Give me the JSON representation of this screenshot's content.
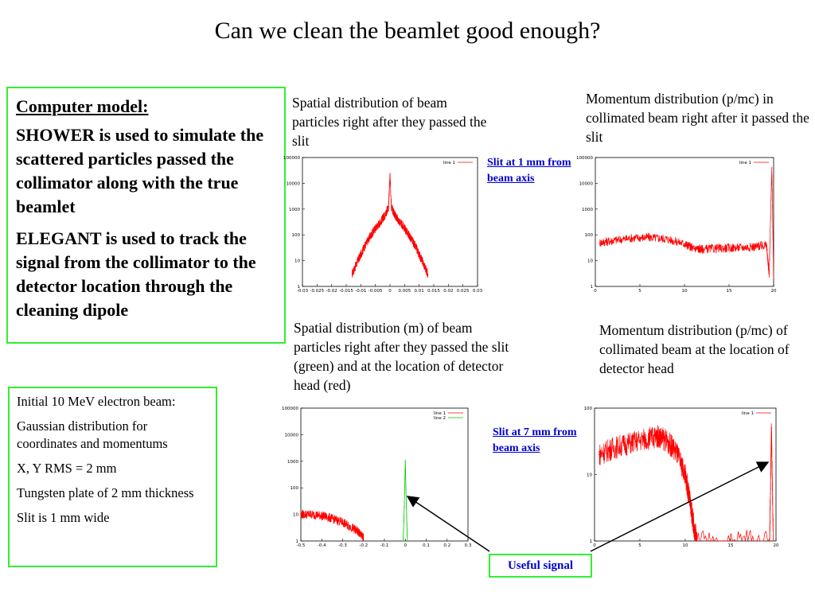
{
  "title": "Can we clean the beamlet good enough?",
  "model_box": {
    "heading": "Computer model:",
    "p1": "SHOWER is used to simulate the scattered particles passed the collimator along with the true beamlet",
    "p2": "ELEGANT is used to track the signal from the collimator to the detector location through the cleaning dipole"
  },
  "beam_box": {
    "p1": "Initial 10 MeV electron beam:",
    "p2": "Gaussian distribution for coordinates and momentums",
    "p3": "X, Y RMS = 2 mm",
    "p4": "Tungsten plate of 2 mm thickness",
    "p5": "Slit is 1 mm wide"
  },
  "captions": {
    "c1": "Spatial distribution of beam particles right after they passed the slit",
    "c2": "Momentum distribution (p/mc) in collimated beam right after it passed the slit",
    "c3": "Spatial distribution (m) of beam particles right after they passed the slit (green) and at the location of detector head (red)",
    "c4": "Momentum distribution (p/mc) of collimated beam at the location of detector head"
  },
  "links": {
    "slit1": "Slit at 1 mm from beam axis",
    "slit7": "Slit at 7 mm from beam axis"
  },
  "useful_signal": "Useful signal",
  "colors": {
    "box_border": "#33ee33",
    "link": "#0000cc",
    "series_red": "#ff0000",
    "series_green": "#00cc00"
  },
  "chart_data": [
    {
      "type": "line",
      "xlim": [
        -0.03,
        0.03
      ],
      "ylim": [
        1,
        100000
      ],
      "yscale": "log",
      "grid": false,
      "legend": "top-right",
      "xticks": [
        "-0.03",
        "-0.025",
        "-0.02",
        "-0.015",
        "-0.01",
        "-0.005",
        "0",
        "0.005",
        "0.01",
        "0.015",
        "0.02",
        "0.025",
        "0.03"
      ],
      "yticks": [
        "1",
        "10",
        "100",
        "1000",
        "10000",
        "100000"
      ],
      "series": [
        {
          "name": "line 1",
          "color": "#ff0000",
          "x": [
            -0.013,
            -0.011,
            -0.009,
            -0.007,
            -0.005,
            -0.003,
            -0.0015,
            -0.0005,
            0,
            0.0005,
            0.0015,
            0.003,
            0.005,
            0.007,
            0.009,
            0.011,
            0.013
          ],
          "y": [
            3,
            10,
            30,
            80,
            180,
            350,
            650,
            1200,
            20000,
            1200,
            650,
            350,
            180,
            80,
            30,
            10,
            3
          ]
        }
      ]
    },
    {
      "type": "line",
      "xlim": [
        0,
        20
      ],
      "ylim": [
        1,
        100000
      ],
      "yscale": "log",
      "grid": false,
      "legend": "top-right",
      "xticks": [
        "0",
        "5",
        "10",
        "15",
        "20"
      ],
      "yticks": [
        "1",
        "10",
        "100",
        "1000",
        "10000",
        "100000"
      ],
      "series": [
        {
          "name": "line 1",
          "color": "#ff0000",
          "x": [
            0.5,
            2,
            4,
            6,
            8,
            10,
            11,
            12,
            14,
            16,
            18,
            19.2,
            19.5,
            19.8,
            20
          ],
          "y": [
            50,
            60,
            75,
            80,
            70,
            45,
            30,
            28,
            30,
            32,
            35,
            40,
            3,
            40000,
            2
          ]
        }
      ]
    },
    {
      "type": "line",
      "xlim": [
        -0.5,
        0.3
      ],
      "ylim": [
        1,
        100000
      ],
      "yscale": "log",
      "grid": false,
      "legend": "top-right",
      "xticks": [
        "-0.5",
        "-0.4",
        "-0.3",
        "-0.2",
        "-0.1",
        "0",
        "0.1",
        "0.2",
        "0.3"
      ],
      "yticks": [
        "1",
        "10",
        "100",
        "1000",
        "10000",
        "100000"
      ],
      "series": [
        {
          "name": "line 1",
          "color": "#ff0000",
          "x": [
            -0.5,
            -0.45,
            -0.4,
            -0.35,
            -0.3,
            -0.25,
            -0.22,
            -0.2
          ],
          "y": [
            10,
            10,
            9,
            7,
            5,
            3,
            2,
            1.3
          ]
        },
        {
          "name": "line 2",
          "color": "#00cc00",
          "x": [
            -0.01,
            -0.005,
            0,
            0.005,
            0.01
          ],
          "y": [
            1,
            20,
            1000,
            20,
            1
          ]
        }
      ]
    },
    {
      "type": "line",
      "xlim": [
        0,
        20
      ],
      "ylim": [
        1,
        100
      ],
      "yscale": "log",
      "grid": false,
      "legend": "top-right",
      "xticks": [
        "0",
        "5",
        "10",
        "15",
        "20"
      ],
      "yticks": [
        "1",
        "10",
        "100"
      ],
      "series": [
        {
          "name": "line 1",
          "color": "#ff0000",
          "x": [
            0.5,
            2,
            4,
            6,
            7,
            8,
            9,
            10,
            10.5,
            11,
            11.3,
            19.3,
            19.5,
            19.7
          ],
          "y": [
            20,
            25,
            30,
            35,
            38,
            32,
            22,
            10,
            4,
            1.5,
            1,
            1,
            50,
            1
          ]
        }
      ]
    }
  ]
}
